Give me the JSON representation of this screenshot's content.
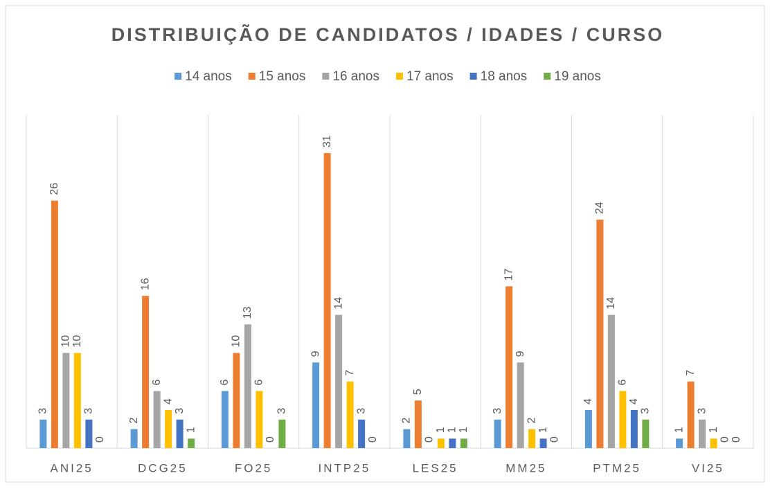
{
  "chart_data": {
    "type": "bar",
    "title": "DISTRIBUIÇÃO DE CANDIDATOS / IDADES / CURSO",
    "categories": [
      "ANI25",
      "DCG25",
      "FO25",
      "INTP25",
      "LES25",
      "MM25",
      "PTM25",
      "VI25"
    ],
    "series": [
      {
        "name": "14 anos",
        "color": "#5b9bd5",
        "values": [
          3,
          2,
          6,
          9,
          2,
          3,
          4,
          1
        ]
      },
      {
        "name": "15 anos",
        "color": "#ed7d31",
        "values": [
          26,
          16,
          10,
          31,
          5,
          17,
          24,
          7
        ]
      },
      {
        "name": "16 anos",
        "color": "#a5a5a5",
        "values": [
          10,
          6,
          13,
          14,
          0,
          9,
          14,
          3
        ]
      },
      {
        "name": "17 anos",
        "color": "#ffc000",
        "values": [
          10,
          4,
          6,
          7,
          1,
          2,
          6,
          1
        ]
      },
      {
        "name": "18 anos",
        "color": "#4472c4",
        "values": [
          3,
          3,
          0,
          3,
          1,
          1,
          4,
          0
        ]
      },
      {
        "name": "19 anos",
        "color": "#70ad47",
        "values": [
          0,
          1,
          3,
          0,
          1,
          0,
          3,
          0
        ]
      }
    ],
    "ylim": [
      0,
      35
    ],
    "legend": "top"
  }
}
